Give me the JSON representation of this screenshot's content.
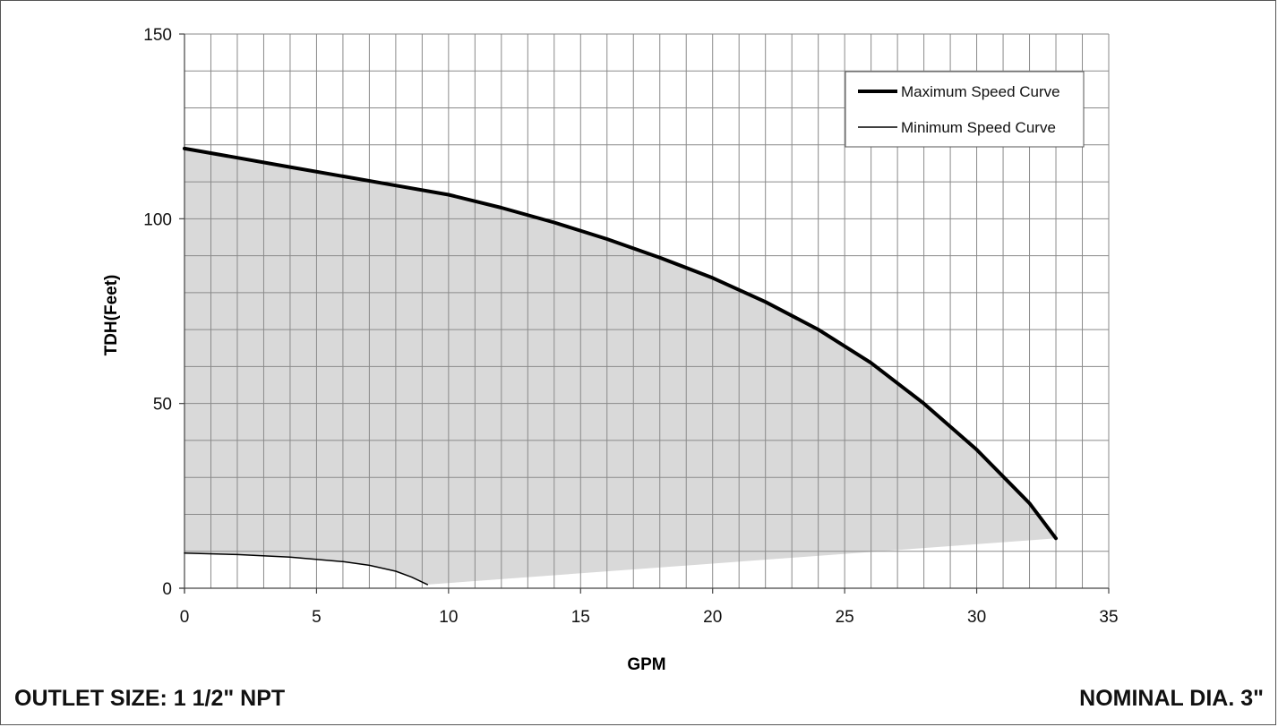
{
  "chart_data": {
    "type": "line",
    "title": "",
    "xlabel": "GPM",
    "ylabel": "TDH(Feet)",
    "xlim": [
      0,
      35
    ],
    "ylim": [
      0,
      150
    ],
    "x_ticks": [
      0,
      5,
      10,
      15,
      20,
      25,
      30,
      35
    ],
    "y_ticks": [
      0,
      50,
      100,
      150
    ],
    "x_minor_step": 1,
    "y_minor_step": 10,
    "grid": true,
    "legend_position": "top-right",
    "series": [
      {
        "name": "Maximum Speed Curve",
        "stroke_weight": "thick",
        "color": "#000000",
        "x": [
          0,
          2,
          4,
          6,
          8,
          10,
          12,
          14,
          16,
          18,
          20,
          22,
          24,
          26,
          28,
          30,
          32,
          33
        ],
        "y": [
          119,
          116.5,
          114,
          111.5,
          109,
          106.5,
          103,
          99,
          94.5,
          89.5,
          84,
          77.5,
          70,
          61,
          50,
          37.5,
          23,
          13.5
        ]
      },
      {
        "name": "Minimum Speed Curve",
        "stroke_weight": "thin",
        "color": "#000000",
        "x": [
          0,
          2,
          4,
          6,
          7,
          8,
          8.6,
          9.2
        ],
        "y": [
          9.5,
          9.1,
          8.4,
          7.2,
          6.2,
          4.6,
          3.0,
          1.0
        ]
      }
    ],
    "operating_region": {
      "fill": "#d9d9d9",
      "x": [
        0,
        2,
        4,
        6,
        8,
        10,
        12,
        14,
        16,
        18,
        20,
        22,
        24,
        26,
        28,
        30,
        32,
        33,
        9.2,
        8.6,
        8,
        7,
        6,
        4,
        2,
        0
      ],
      "y": [
        119,
        116.5,
        114,
        111.5,
        109,
        106.5,
        103,
        99,
        94.5,
        89.5,
        84,
        77.5,
        70,
        61,
        50,
        37.5,
        23,
        13.5,
        1.0,
        3.0,
        4.6,
        6.2,
        7.2,
        8.4,
        9.1,
        9.5
      ]
    }
  },
  "footer": {
    "left": "OUTLET SIZE: 1 1/2\" NPT",
    "right": "NOMINAL DIA. 3\""
  }
}
